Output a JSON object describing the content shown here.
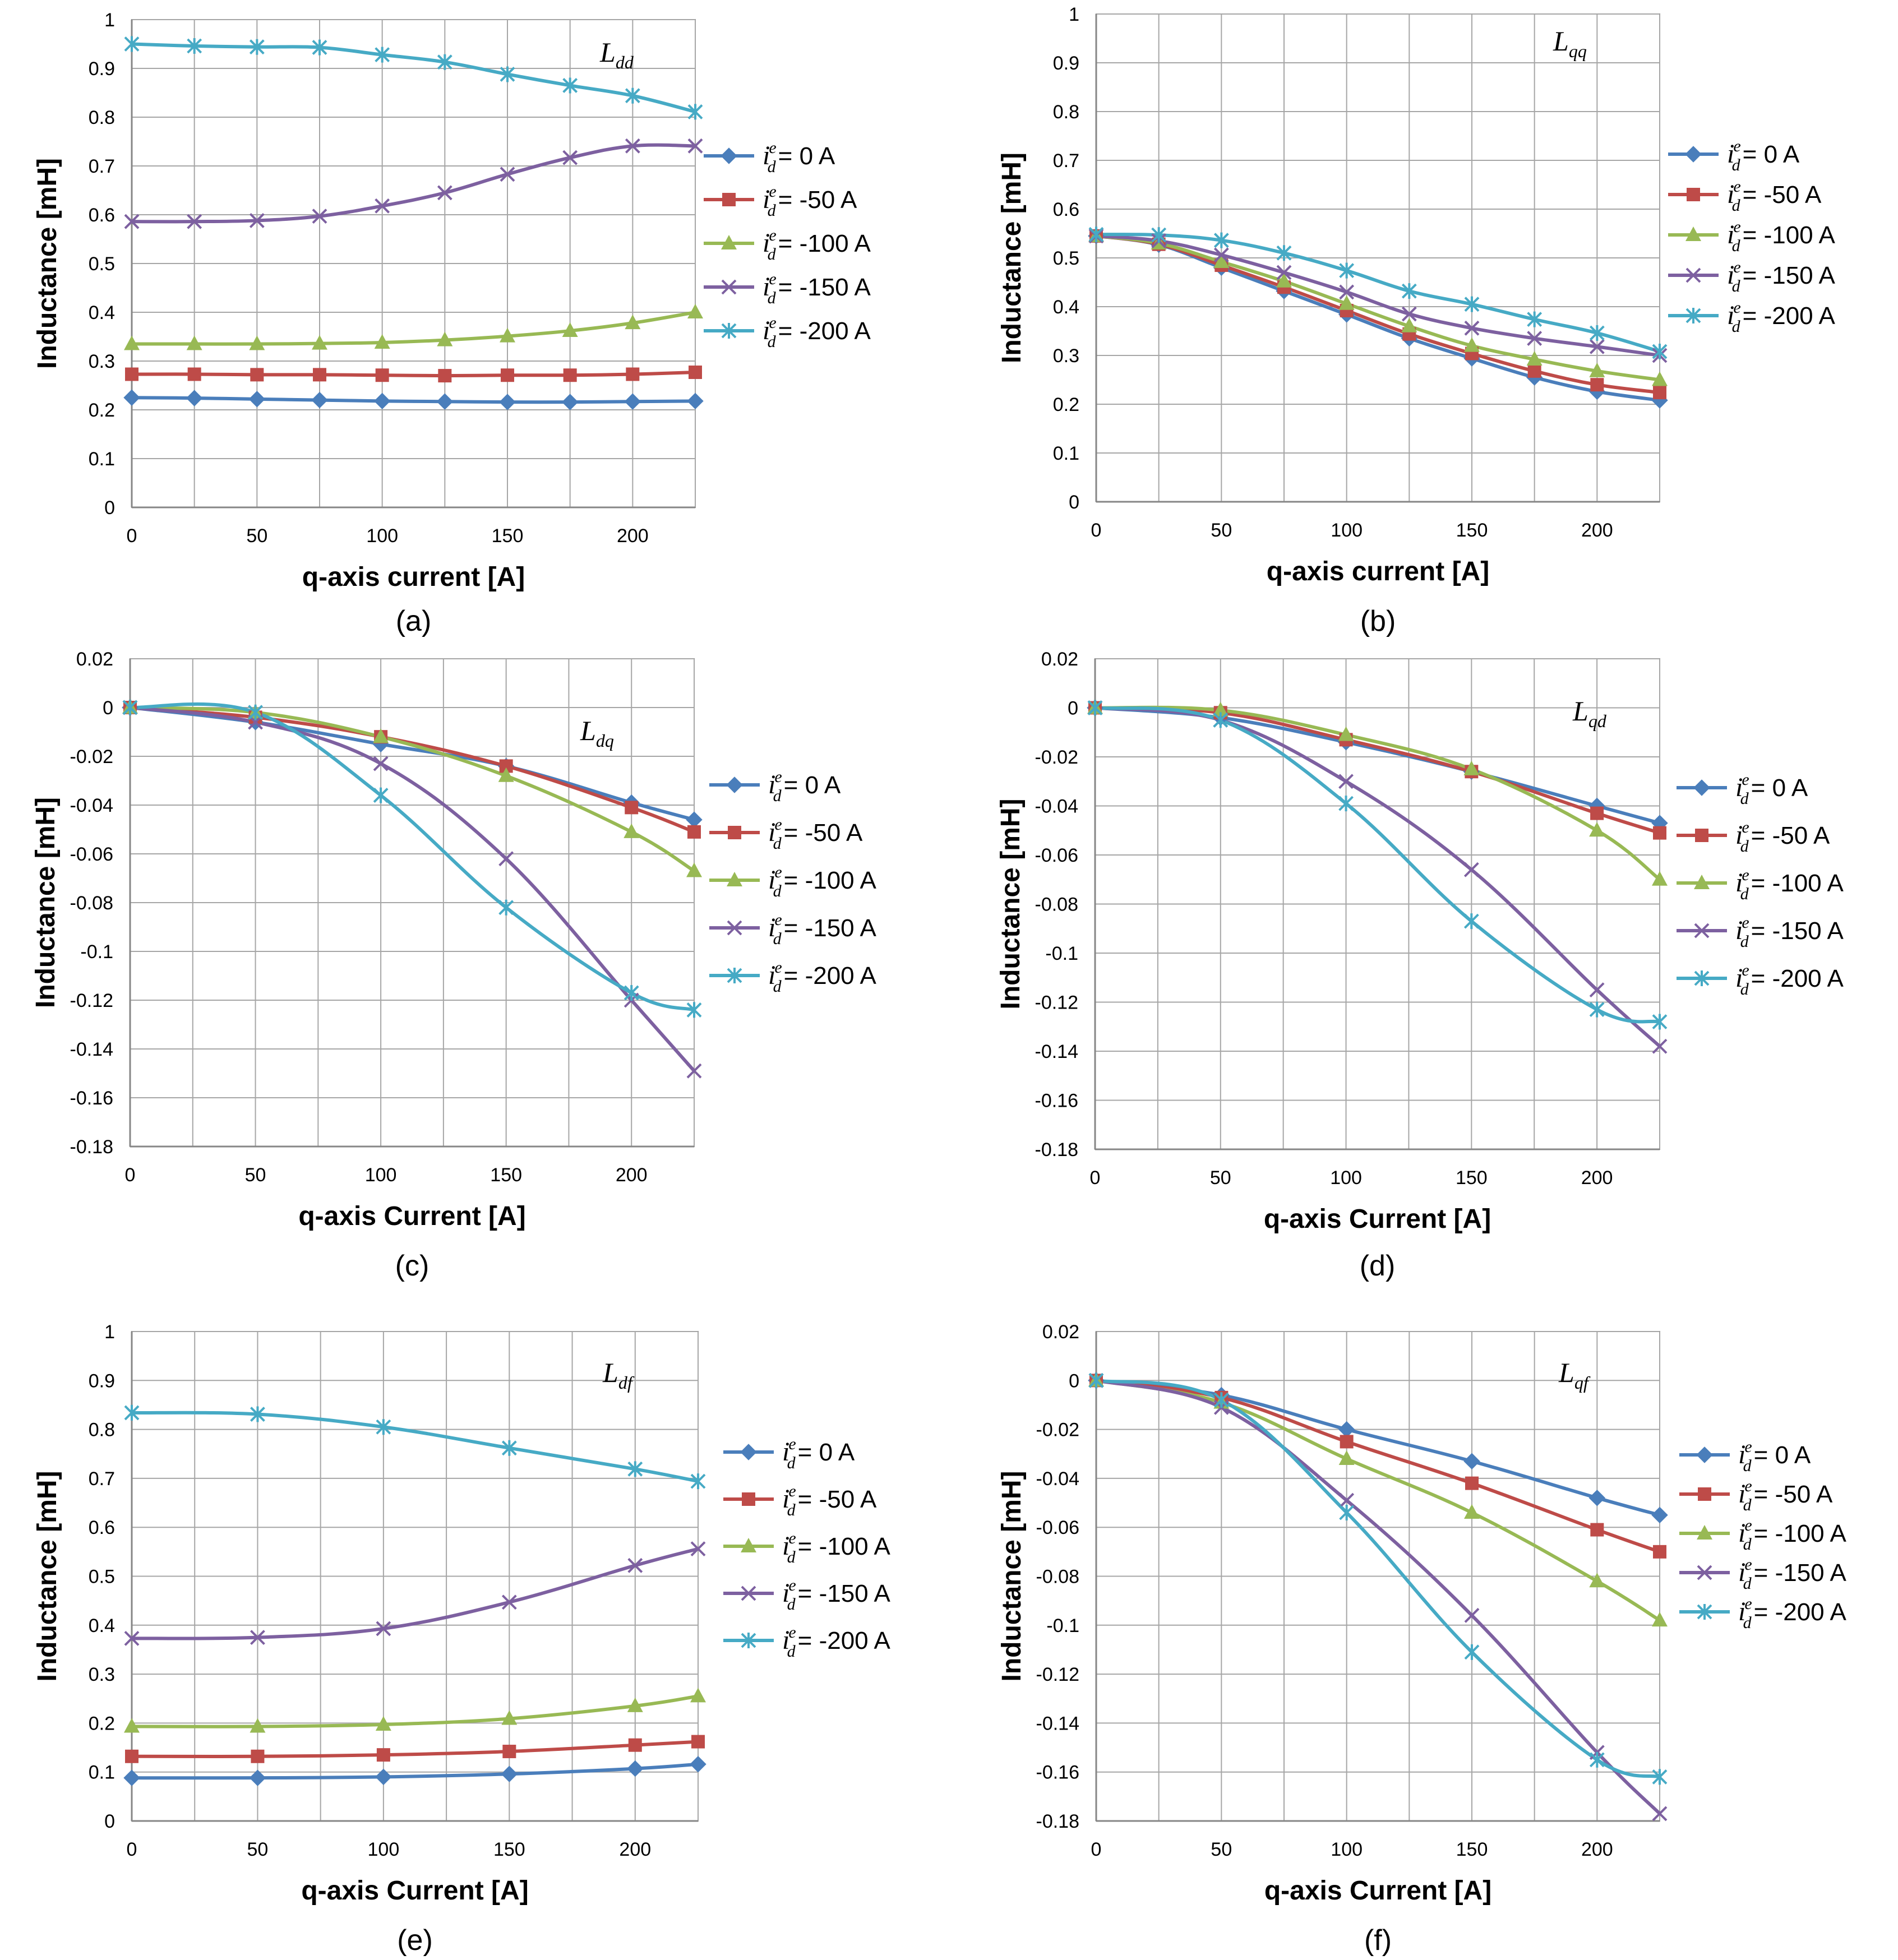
{
  "legend": {
    "symbol": "i",
    "sub": "d",
    "sup": "e",
    "labels": [
      "= 0 A",
      "= -50 A",
      "= -100 A",
      "= -150 A",
      "= -200 A"
    ]
  },
  "series_styles": [
    {
      "name": "i_d^e = 0 A",
      "color": "#4a7ebb",
      "marker": "diamond"
    },
    {
      "name": "i_d^e = -50 A",
      "color": "#be4b48",
      "marker": "square"
    },
    {
      "name": "i_d^e = -100 A",
      "color": "#98b954",
      "marker": "triangle"
    },
    {
      "name": "i_d^e = -150 A",
      "color": "#7d60a0",
      "marker": "x"
    },
    {
      "name": "i_d^e = -200 A",
      "color": "#46aac5",
      "marker": "star"
    }
  ],
  "chart_data": [
    {
      "id": "a",
      "type": "line",
      "caption": "(a)",
      "annotation": {
        "main": "L",
        "sub": "dd"
      },
      "xlabel": "q-axis current [A]",
      "ylabel": "Inductance [mH]",
      "xlim": [
        0,
        225
      ],
      "xticks": [
        0,
        50,
        100,
        150,
        200
      ],
      "xgrid": 25,
      "ylim": [
        0,
        1
      ],
      "yticks": [
        0,
        0.1,
        0.2,
        0.3,
        0.4,
        0.5,
        0.6,
        0.7,
        0.8,
        0.9,
        1
      ],
      "ytick_labels": [
        "0",
        "0.1",
        "0.2",
        "0.3",
        "0.4",
        "0.5",
        "0.6",
        "0.7",
        "0.8",
        "0.9",
        "1"
      ],
      "x": [
        0,
        25,
        50,
        75,
        100,
        125,
        150,
        175,
        200,
        225
      ],
      "series": [
        {
          "name": "i_d^e = 0 A",
          "values": [
            0.225,
            0.224,
            0.222,
            0.22,
            0.218,
            0.217,
            0.216,
            0.216,
            0.217,
            0.218
          ]
        },
        {
          "name": "i_d^e = -50 A",
          "values": [
            0.273,
            0.273,
            0.272,
            0.272,
            0.271,
            0.27,
            0.271,
            0.271,
            0.273,
            0.277
          ]
        },
        {
          "name": "i_d^e = -100 A",
          "values": [
            0.335,
            0.335,
            0.335,
            0.336,
            0.338,
            0.343,
            0.351,
            0.362,
            0.378,
            0.4
          ]
        },
        {
          "name": "i_d^e = -150 A",
          "values": [
            0.586,
            0.586,
            0.588,
            0.597,
            0.618,
            0.645,
            0.683,
            0.717,
            0.741,
            0.741
          ]
        },
        {
          "name": "i_d^e = -200 A",
          "values": [
            0.95,
            0.946,
            0.944,
            0.943,
            0.928,
            0.913,
            0.888,
            0.865,
            0.844,
            0.811
          ]
        }
      ]
    },
    {
      "id": "b",
      "type": "line",
      "caption": "(b)",
      "annotation": {
        "main": "L",
        "sub": "qq"
      },
      "xlabel": "q-axis current [A]",
      "ylabel": "Inductance [mH]",
      "xlim": [
        0,
        225
      ],
      "xticks": [
        0,
        50,
        100,
        150,
        200
      ],
      "xgrid": 25,
      "ylim": [
        0,
        1
      ],
      "yticks": [
        0,
        0.1,
        0.2,
        0.3,
        0.4,
        0.5,
        0.6,
        0.7,
        0.8,
        0.9,
        1
      ],
      "ytick_labels": [
        "0",
        "0.1",
        "0.2",
        "0.3",
        "0.4",
        "0.5",
        "0.6",
        "0.7",
        "0.8",
        "0.9",
        "1"
      ],
      "x": [
        0,
        25,
        50,
        75,
        100,
        125,
        150,
        175,
        200,
        225
      ],
      "series": [
        {
          "name": "i_d^e = 0 A",
          "values": [
            0.545,
            0.527,
            0.48,
            0.432,
            0.384,
            0.335,
            0.294,
            0.255,
            0.226,
            0.208
          ]
        },
        {
          "name": "i_d^e = -50 A",
          "values": [
            0.545,
            0.528,
            0.485,
            0.44,
            0.392,
            0.344,
            0.304,
            0.268,
            0.24,
            0.224
          ]
        },
        {
          "name": "i_d^e = -100 A",
          "values": [
            0.545,
            0.53,
            0.492,
            0.452,
            0.406,
            0.36,
            0.32,
            0.292,
            0.268,
            0.25
          ]
        },
        {
          "name": "i_d^e = -150 A",
          "values": [
            0.545,
            0.535,
            0.506,
            0.47,
            0.43,
            0.385,
            0.356,
            0.335,
            0.318,
            0.3
          ]
        },
        {
          "name": "i_d^e = -200 A",
          "values": [
            0.548,
            0.547,
            0.536,
            0.51,
            0.474,
            0.432,
            0.405,
            0.374,
            0.346,
            0.308
          ]
        }
      ]
    },
    {
      "id": "c",
      "type": "line",
      "caption": "(c)",
      "annotation": {
        "main": "L",
        "sub": "dq"
      },
      "xlabel": "q-axis Current [A]",
      "ylabel": "Inductance [mH]",
      "xlim": [
        0,
        225
      ],
      "xticks": [
        0,
        50,
        100,
        150,
        200
      ],
      "xgrid": 25,
      "ylim": [
        -0.18,
        0.02
      ],
      "yticks": [
        -0.18,
        -0.16,
        -0.14,
        -0.12,
        -0.1,
        -0.08,
        -0.06,
        -0.04,
        -0.02,
        0,
        0.02
      ],
      "ytick_labels": [
        "-0.18",
        "-0.16",
        "-0.14",
        "-0.12",
        "-0.1",
        "-0.08",
        "-0.06",
        "-0.04",
        "-0.02",
        "0",
        "0.02"
      ],
      "x": [
        0,
        50,
        100,
        150,
        200,
        225
      ],
      "series": [
        {
          "name": "i_d^e = 0 A",
          "values": [
            0,
            -0.006,
            -0.015,
            -0.024,
            -0.039,
            -0.046
          ]
        },
        {
          "name": "i_d^e = -50 A",
          "values": [
            0,
            -0.004,
            -0.012,
            -0.024,
            -0.041,
            -0.051
          ]
        },
        {
          "name": "i_d^e = -100 A",
          "values": [
            0,
            -0.002,
            -0.012,
            -0.028,
            -0.051,
            -0.067
          ]
        },
        {
          "name": "i_d^e = -150 A",
          "values": [
            0,
            -0.006,
            -0.023,
            -0.062,
            -0.12,
            -0.149
          ]
        },
        {
          "name": "i_d^e = -200 A",
          "values": [
            0,
            -0.002,
            -0.036,
            -0.082,
            -0.117,
            -0.124
          ]
        }
      ]
    },
    {
      "id": "d",
      "type": "line",
      "caption": "(d)",
      "annotation": {
        "main": "L",
        "sub": "qd"
      },
      "xlabel": "q-axis Current [A]",
      "ylabel": "Inductance [mH]",
      "xlim": [
        0,
        225
      ],
      "xticks": [
        0,
        50,
        100,
        150,
        200
      ],
      "xgrid": 25,
      "ylim": [
        -0.18,
        0.02
      ],
      "yticks": [
        -0.18,
        -0.16,
        -0.14,
        -0.12,
        -0.1,
        -0.08,
        -0.06,
        -0.04,
        -0.02,
        0,
        0.02
      ],
      "ytick_labels": [
        "-0.18",
        "-0.16",
        "-0.14",
        "-0.12",
        "-0.1",
        "-0.08",
        "-0.06",
        "-0.04",
        "-0.02",
        "0",
        "0.02"
      ],
      "x": [
        0,
        50,
        100,
        150,
        200,
        225
      ],
      "series": [
        {
          "name": "i_d^e = 0 A",
          "values": [
            0,
            -0.004,
            -0.014,
            -0.026,
            -0.04,
            -0.047
          ]
        },
        {
          "name": "i_d^e = -50 A",
          "values": [
            0,
            -0.002,
            -0.013,
            -0.026,
            -0.043,
            -0.051
          ]
        },
        {
          "name": "i_d^e = -100 A",
          "values": [
            0,
            -0.001,
            -0.011,
            -0.025,
            -0.05,
            -0.07
          ]
        },
        {
          "name": "i_d^e = -150 A",
          "values": [
            0,
            -0.005,
            -0.03,
            -0.066,
            -0.115,
            -0.138
          ]
        },
        {
          "name": "i_d^e = -200 A",
          "values": [
            0,
            -0.005,
            -0.039,
            -0.087,
            -0.123,
            -0.128
          ]
        }
      ]
    },
    {
      "id": "e",
      "type": "line",
      "caption": "(e)",
      "annotation": {
        "main": "L",
        "sub": "df"
      },
      "xlabel": "q-axis Current [A]",
      "ylabel": "Inductance [mH]",
      "xlim": [
        0,
        225
      ],
      "xticks": [
        0,
        50,
        100,
        150,
        200
      ],
      "xgrid": 25,
      "ylim": [
        0,
        1
      ],
      "yticks": [
        0,
        0.1,
        0.2,
        0.3,
        0.4,
        0.5,
        0.6,
        0.7,
        0.8,
        0.9,
        1
      ],
      "ytick_labels": [
        "0",
        "0.1",
        "0.2",
        "0.3",
        "0.4",
        "0.5",
        "0.6",
        "0.7",
        "0.8",
        "0.9",
        "1"
      ],
      "x": [
        0,
        50,
        100,
        150,
        200,
        225
      ],
      "series": [
        {
          "name": "i_d^e = 0 A",
          "values": [
            0.088,
            0.088,
            0.09,
            0.096,
            0.107,
            0.116
          ]
        },
        {
          "name": "i_d^e = -50 A",
          "values": [
            0.132,
            0.132,
            0.135,
            0.142,
            0.155,
            0.162
          ]
        },
        {
          "name": "i_d^e = -100 A",
          "values": [
            0.193,
            0.193,
            0.197,
            0.209,
            0.235,
            0.255
          ]
        },
        {
          "name": "i_d^e = -150 A",
          "values": [
            0.373,
            0.375,
            0.393,
            0.447,
            0.522,
            0.556
          ]
        },
        {
          "name": "i_d^e = -200 A",
          "values": [
            0.834,
            0.831,
            0.805,
            0.762,
            0.719,
            0.694
          ]
        }
      ]
    },
    {
      "id": "f",
      "type": "line",
      "caption": "(f)",
      "annotation": {
        "main": "L",
        "sub": "qf"
      },
      "xlabel": "q-axis Current [A]",
      "ylabel": "Inductance [mH]",
      "xlim": [
        0,
        225
      ],
      "xticks": [
        0,
        50,
        100,
        150,
        200
      ],
      "xgrid": 25,
      "ylim": [
        -0.18,
        0.02
      ],
      "yticks": [
        -0.18,
        -0.16,
        -0.14,
        -0.12,
        -0.1,
        -0.08,
        -0.06,
        -0.04,
        -0.02,
        0,
        0.02
      ],
      "ytick_labels": [
        "-0.18",
        "-0.16",
        "-0.14",
        "-0.12",
        "-0.1",
        "-0.08",
        "-0.06",
        "-0.04",
        "-0.02",
        "0",
        "0.02"
      ],
      "x": [
        0,
        50,
        100,
        150,
        200,
        225
      ],
      "series": [
        {
          "name": "i_d^e = 0 A",
          "values": [
            0,
            -0.006,
            -0.02,
            -0.033,
            -0.048,
            -0.055
          ]
        },
        {
          "name": "i_d^e = -50 A",
          "values": [
            0,
            -0.007,
            -0.025,
            -0.042,
            -0.061,
            -0.07
          ]
        },
        {
          "name": "i_d^e = -100 A",
          "values": [
            0,
            -0.009,
            -0.032,
            -0.054,
            -0.082,
            -0.098
          ]
        },
        {
          "name": "i_d^e = -150 A",
          "values": [
            0,
            -0.011,
            -0.049,
            -0.096,
            -0.152,
            -0.177
          ]
        },
        {
          "name": "i_d^e = -200 A",
          "values": [
            0,
            -0.008,
            -0.054,
            -0.111,
            -0.155,
            -0.162
          ]
        }
      ]
    }
  ]
}
